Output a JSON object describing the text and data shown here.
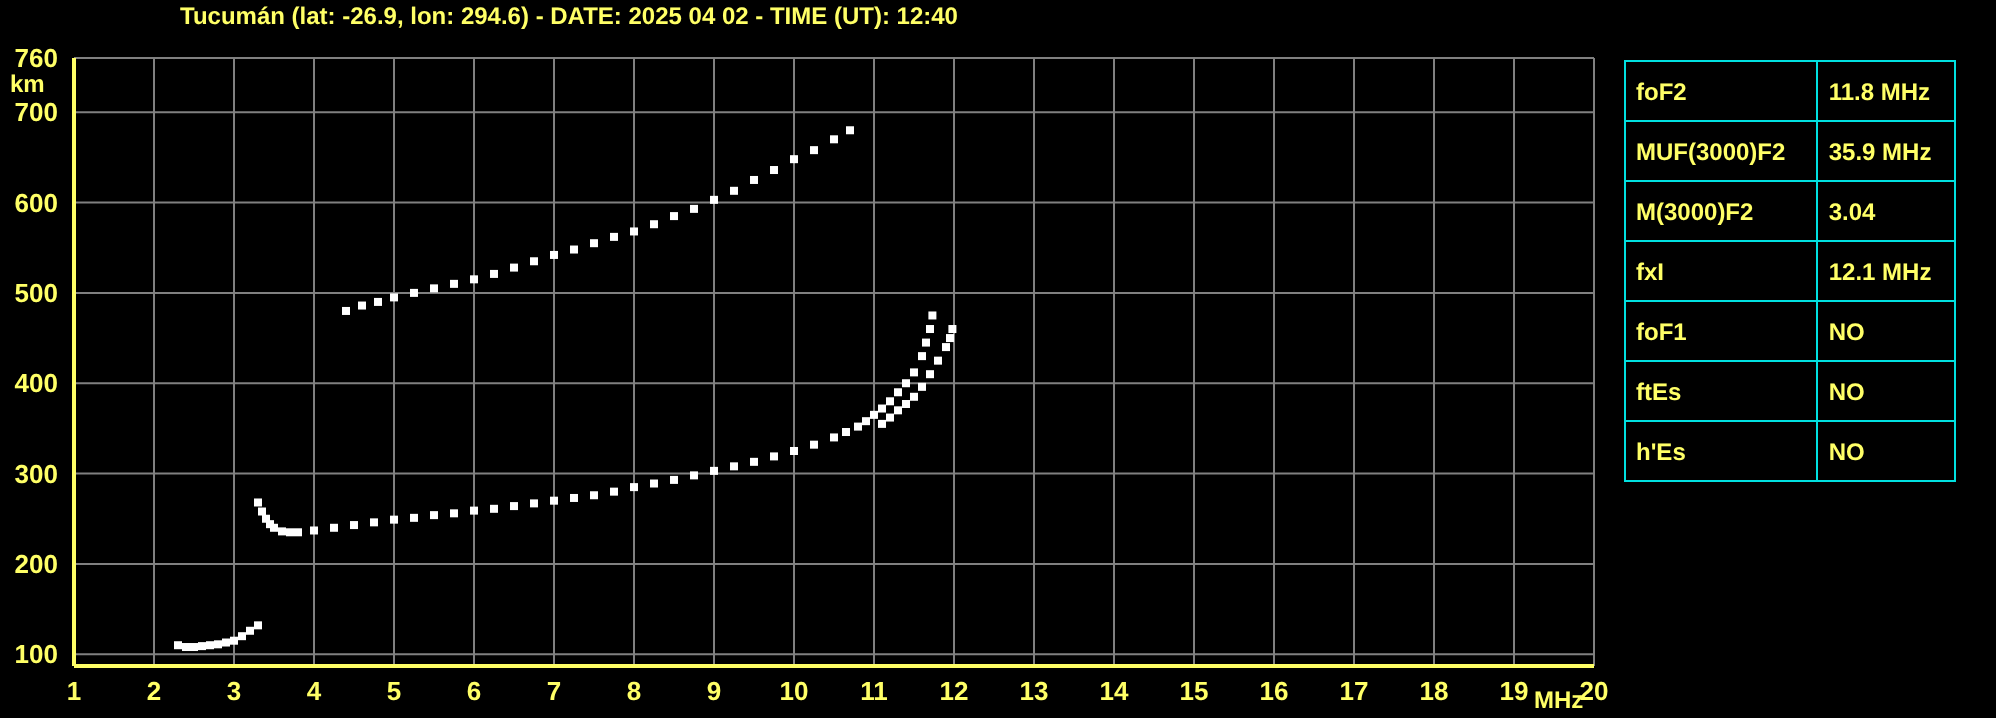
{
  "chart_data": {
    "type": "scatter",
    "title": "Tucumán (lat: -26.9, lon: 294.6) - DATE: 2025 04 02 - TIME (UT): 12:40",
    "xlabel": "MHz",
    "ylabel": "km",
    "xlim": [
      1,
      20
    ],
    "xticks": [
      1,
      2,
      3,
      4,
      5,
      6,
      7,
      8,
      9,
      10,
      11,
      12,
      13,
      14,
      15,
      16,
      17,
      18,
      19,
      20
    ],
    "ylim": [
      87,
      760
    ],
    "yticks": [
      100,
      200,
      300,
      400,
      500,
      600,
      700,
      760
    ],
    "grid": true,
    "marker": "square",
    "series": [
      {
        "color": "#ffffff",
        "x": [
          2.3,
          2.4,
          2.5,
          2.6,
          2.7,
          2.8,
          2.9,
          3.0,
          3.1,
          3.2,
          3.3
        ],
        "values": [
          110,
          108,
          108,
          109,
          110,
          111,
          113,
          115,
          120,
          126,
          132
        ]
      },
      {
        "color": "#ffffff",
        "x": [
          3.3,
          3.35,
          3.4,
          3.45,
          3.5,
          3.6,
          3.7,
          3.8,
          4,
          4.25,
          4.5,
          4.75,
          5,
          5.25,
          5.5,
          5.75,
          6,
          6.25,
          6.5,
          6.75,
          7,
          7.25,
          7.5,
          7.75,
          8,
          8.25,
          8.5,
          8.75,
          9,
          9.25,
          9.5,
          9.75,
          10,
          10.25,
          10.5,
          10.65,
          10.8,
          10.9,
          11,
          11.1,
          11.2,
          11.3,
          11.4,
          11.5,
          11.6,
          11.65,
          11.7,
          11.73
        ],
        "values": [
          268,
          258,
          250,
          244,
          240,
          236,
          235,
          235,
          237,
          240,
          243,
          246,
          249,
          251,
          254,
          256,
          259,
          261,
          264,
          267,
          270,
          273,
          276,
          280,
          285,
          289,
          293,
          298,
          303,
          308,
          313,
          319,
          325,
          332,
          340,
          346,
          352,
          358,
          365,
          372,
          380,
          390,
          400,
          412,
          430,
          445,
          460,
          475
        ]
      },
      {
        "color": "#ffffff",
        "x": [
          11.1,
          11.2,
          11.3,
          11.4,
          11.5,
          11.6,
          11.7,
          11.8,
          11.9,
          11.95,
          11.98
        ],
        "values": [
          355,
          362,
          370,
          377,
          385,
          396,
          410,
          425,
          440,
          450,
          460
        ]
      },
      {
        "color": "#ffffff",
        "x": [
          4.4,
          4.6,
          4.8,
          5,
          5.25,
          5.5,
          5.75,
          6,
          6.25,
          6.5,
          6.75,
          7,
          7.25,
          7.5,
          7.75,
          8,
          8.25,
          8.5,
          8.75,
          9,
          9.25,
          9.5,
          9.75,
          10,
          10.25,
          10.5,
          10.7
        ],
        "values": [
          480,
          486,
          490,
          495,
          500,
          505,
          510,
          515,
          521,
          528,
          535,
          542,
          548,
          555,
          562,
          568,
          576,
          585,
          593,
          603,
          613,
          625,
          636,
          648,
          658,
          670,
          680
        ]
      }
    ],
    "annotations": [
      "foF2",
      "11.8 MHz",
      "MUF(3000)F2",
      "35.9 MHz",
      "M(3000)F2",
      "3.04",
      "fxI",
      "12.1 MHz",
      "foF1",
      "NO",
      "ftEs",
      "NO",
      "h'Es",
      "NO"
    ]
  }
}
